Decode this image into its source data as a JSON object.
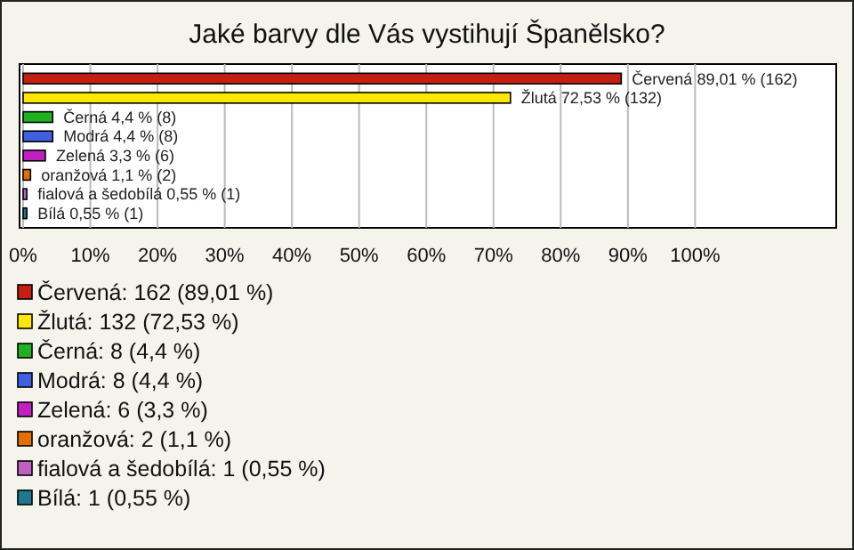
{
  "chart_data": {
    "type": "bar",
    "orientation": "horizontal",
    "title": "Jaké barvy dle Vás vystihují Španělsko?",
    "categories": [
      null,
      null,
      null,
      null,
      null,
      null,
      null,
      null
    ],
    "values": [
      89.01,
      72.53,
      4.4,
      4.4,
      3.3,
      1.1,
      0.55,
      0.55
    ],
    "colors": [
      "#c42010",
      "#ffe800",
      "#20b020",
      "#4060e0",
      "#c020c0",
      "#e07000",
      "#c060c0",
      "#207890"
    ],
    "value_labels": [
      "Červená 89,01 % (162)",
      "Žlutá 72,53 % (132)",
      "Černá 4,4 % (8)",
      "Modrá 4,4 % (8)",
      "Zelená 3,3 % (6)",
      "oranžová 1,1 % (2)",
      "fialová a šedobílá 0,55 % (1)",
      "Bílá 0,55 % (1)"
    ],
    "xlim": [
      0,
      121
    ],
    "xticks": [
      {
        "value": 0,
        "label": "0%"
      },
      {
        "value": 10,
        "label": "10%"
      },
      {
        "value": 20,
        "label": "20%"
      },
      {
        "value": 30,
        "label": "30%"
      },
      {
        "value": 40,
        "label": "40%"
      },
      {
        "value": 50,
        "label": "50%"
      },
      {
        "value": 60,
        "label": "60%"
      },
      {
        "value": 70,
        "label": "70%"
      },
      {
        "value": 80,
        "label": "80%"
      },
      {
        "value": 90,
        "label": "90%"
      },
      {
        "value": 100,
        "label": "100%"
      }
    ],
    "grid": "x",
    "annotations": [
      "Červená: 162 (89,01 %)",
      "Žlutá: 132 (72,53 %)",
      "Černá: 8 (4,4 %)",
      "Modrá: 8 (4,4 %)",
      "Zelená: 6 (3,3 %)",
      "oranžová: 2 (1,1 %)",
      "fialová a šedobílá: 1 (0,55 %)",
      "Bílá: 1 (0,55 %)"
    ]
  }
}
